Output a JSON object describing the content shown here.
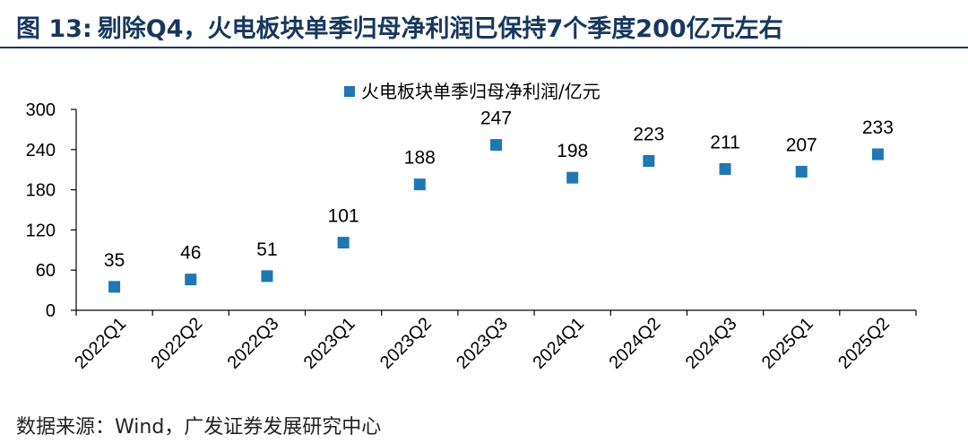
{
  "figure": {
    "label": "图 13:",
    "title": "剔除Q4，火电板块单季归母净利润已保持7个季度200亿元左右"
  },
  "source": "数据来源：Wind，广发证券发展研究中心",
  "colors": {
    "title": "#17375e",
    "marker": "#1f77b4",
    "axis": "#000000"
  },
  "chart_data": {
    "type": "scatter",
    "title": "",
    "xlabel": "",
    "ylabel": "",
    "ylim": [
      0,
      300
    ],
    "yticks": [
      0,
      60,
      120,
      180,
      240,
      300
    ],
    "grid": false,
    "legend_position": "top-center",
    "categories": [
      "2022Q1",
      "2022Q2",
      "2022Q3",
      "2023Q1",
      "2023Q2",
      "2023Q3",
      "2024Q1",
      "2024Q2",
      "2024Q3",
      "2025Q1",
      "2025Q2"
    ],
    "series": [
      {
        "name": "火电板块单季归母净利润/亿元",
        "values": [
          35,
          46,
          51,
          101,
          188,
          247,
          198,
          223,
          211,
          207,
          233
        ]
      }
    ]
  }
}
